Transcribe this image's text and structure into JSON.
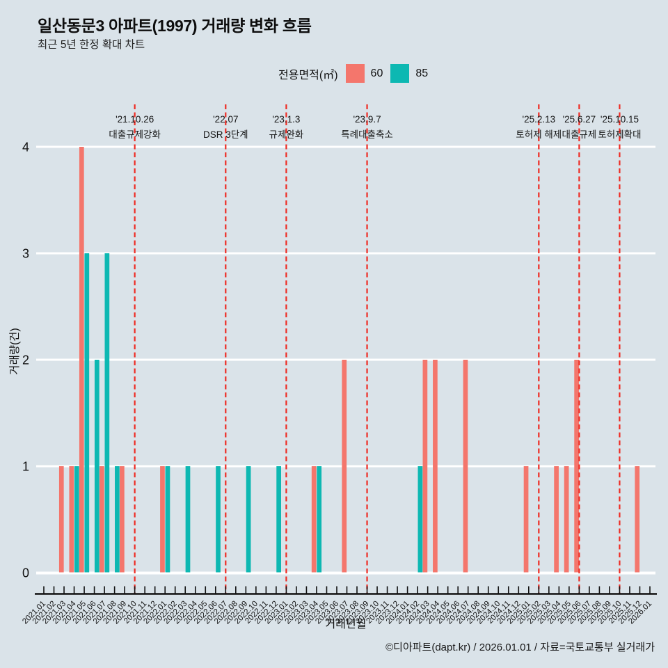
{
  "header": {
    "title": "일산동문3 아파트(1997) 거래량 변화 흐름",
    "subtitle": "최근 5년 한정 확대 차트"
  },
  "legend": {
    "label": "전용면적(㎡)",
    "items": [
      {
        "name": "60",
        "color": "#f4766c"
      },
      {
        "name": "85",
        "color": "#0db8b2"
      }
    ]
  },
  "chart_data": {
    "type": "bar",
    "title": "일산동문3 아파트(1997) 거래량 변화 흐름",
    "xlabel": "거래년월",
    "ylabel": "거래량(건)",
    "ylim": [
      0,
      4
    ],
    "yticks": [
      0,
      1,
      2,
      3,
      4
    ],
    "grid": true,
    "legend_position": "top",
    "categories": [
      "2021.01",
      "2021.02",
      "2021.03",
      "2021.04",
      "2021.05",
      "2021.06",
      "2021.07",
      "2021.08",
      "2021.09",
      "2021.10",
      "2021.11",
      "2021.12",
      "2022.01",
      "2022.02",
      "2022.03",
      "2022.04",
      "2022.05",
      "2022.06",
      "2022.07",
      "2022.08",
      "2022.09",
      "2022.10",
      "2022.11",
      "2022.12",
      "2023.01",
      "2023.02",
      "2023.03",
      "2023.04",
      "2023.05",
      "2023.06",
      "2023.07",
      "2023.08",
      "2023.09",
      "2023.10",
      "2023.11",
      "2023.12",
      "2024.01",
      "2024.02",
      "2024.03",
      "2024.04",
      "2024.05",
      "2024.06",
      "2024.07",
      "2024.08",
      "2024.09",
      "2024.10",
      "2024.11",
      "2024.12",
      "2025.01",
      "2025.02",
      "2025.03",
      "2025.04",
      "2025.05",
      "2025.06",
      "2025.07",
      "2025.08",
      "2025.09",
      "2025.10",
      "2025.11",
      "2025.12",
      "2026.01"
    ],
    "series": [
      {
        "name": "60",
        "color": "#f4766c",
        "values_by_month": {
          "2021.03": 1,
          "2021.04": 1,
          "2021.05": 4,
          "2021.07": 1,
          "2021.09": 1,
          "2022.01": 1,
          "2023.04": 1,
          "2023.07": 2,
          "2024.03": 2,
          "2024.04": 2,
          "2024.07": 2,
          "2025.01": 1,
          "2025.04": 1,
          "2025.05": 1,
          "2025.06": 2,
          "2025.12": 1
        }
      },
      {
        "name": "85",
        "color": "#0db8b2",
        "values_by_month": {
          "2021.04": 1,
          "2021.05": 3,
          "2021.06": 2,
          "2021.07": 3,
          "2021.08": 1,
          "2022.01": 1,
          "2022.03": 1,
          "2022.06": 1,
          "2022.09": 1,
          "2022.12": 1,
          "2023.04": 1,
          "2024.02": 1
        }
      }
    ],
    "annotations": [
      {
        "month": "2021.10",
        "date": "'21.10.26",
        "label": "대출규제강화"
      },
      {
        "month": "2022.07",
        "date": "'22.07",
        "label": "DSR 3단계"
      },
      {
        "month": "2023.01",
        "date": "'23.1.3",
        "label": "규제완화"
      },
      {
        "month": "2023.09",
        "date": "'23.9.7",
        "label": "특례대출축소"
      },
      {
        "month": "2025.02",
        "date": "'25.2.13",
        "label": "토허제 해제"
      },
      {
        "month": "2025.06",
        "date": "'25.6.27",
        "label": "대출규제"
      },
      {
        "month": "2025.10",
        "date": "'25.10.15",
        "label": "토허제확대"
      }
    ],
    "annotation_line_color": "#ee2b23",
    "gridline_color": "#ffffff"
  },
  "footer": {
    "credit": "©디아파트(dapt.kr) / 2026.01.01 / 자료=국토교통부 실거래가"
  }
}
